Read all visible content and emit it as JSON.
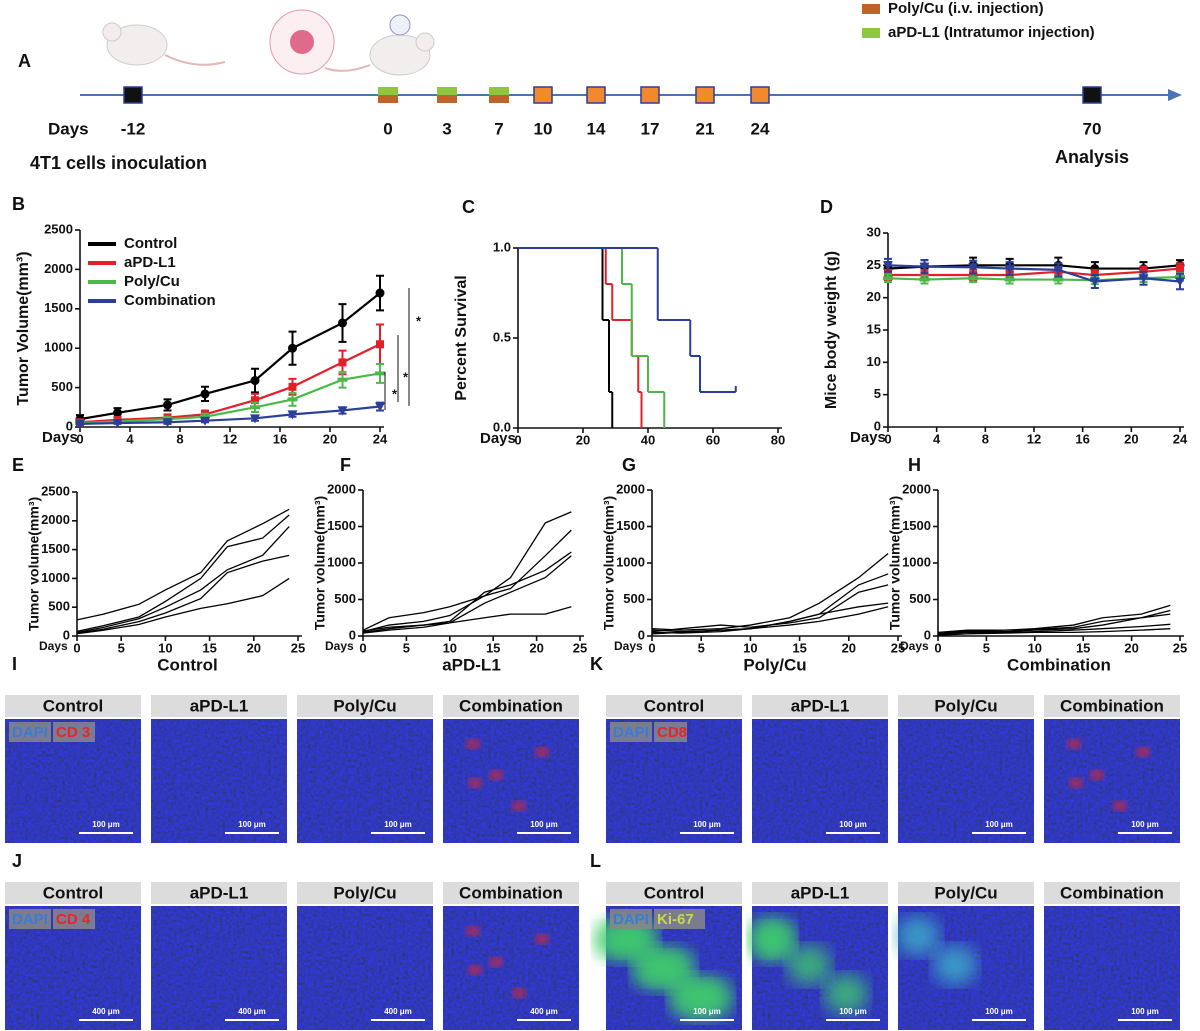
{
  "timeline": {
    "label": "A",
    "axis_label": "Days",
    "start_label": "4T1 cells inoculation",
    "end_label": "Analysis",
    "legend": [
      {
        "text": "Poly/Cu  (i.v. injection)",
        "color": "#c0622b"
      },
      {
        "text": "aPD-L1 (Intratumor injection)",
        "color": "#8dc63f"
      }
    ],
    "events": [
      {
        "day": "-12",
        "colors": [
          "#111111"
        ]
      },
      {
        "day": "0",
        "colors": [
          "#8dc63f",
          "#c0622b"
        ]
      },
      {
        "day": "3",
        "colors": [
          "#8dc63f",
          "#c0622b"
        ]
      },
      {
        "day": "7",
        "colors": [
          "#8dc63f",
          "#c0622b"
        ]
      },
      {
        "day": "10",
        "colors": [
          "#f08a2c"
        ]
      },
      {
        "day": "14",
        "colors": [
          "#f08a2c"
        ]
      },
      {
        "day": "17",
        "colors": [
          "#f08a2c"
        ]
      },
      {
        "day": "21",
        "colors": [
          "#f08a2c"
        ]
      },
      {
        "day": "24",
        "colors": [
          "#f08a2c"
        ]
      },
      {
        "day": "70",
        "colors": [
          "#111111"
        ]
      }
    ]
  },
  "chart_data": [
    {
      "label": "B",
      "type": "line",
      "ylabel": "Tumor Volume(mm³)",
      "xlabel": "Days",
      "x": [
        0,
        3,
        7,
        10,
        14,
        17,
        21,
        24
      ],
      "xlim": [
        0,
        24
      ],
      "xticks": [
        0,
        4,
        8,
        12,
        16,
        20,
        24
      ],
      "ylim": [
        0,
        2500
      ],
      "yticks": [
        0,
        500,
        1000,
        1500,
        2000,
        2500
      ],
      "legend": "upper left",
      "annotations": [
        "*",
        "*",
        "*"
      ],
      "series": [
        {
          "name": "Control",
          "color": "#000000",
          "marker": "circle",
          "values": [
            100,
            180,
            280,
            420,
            590,
            1000,
            1320,
            1700
          ],
          "errors": [
            50,
            60,
            70,
            90,
            150,
            210,
            240,
            220
          ]
        },
        {
          "name": "aPD-L1",
          "color": "#e3202a",
          "marker": "square",
          "values": [
            60,
            90,
            120,
            160,
            340,
            510,
            820,
            1050
          ],
          "errors": [
            20,
            30,
            40,
            50,
            80,
            100,
            150,
            250
          ]
        },
        {
          "name": "Poly/Cu",
          "color": "#4cb848",
          "marker": "bar",
          "values": [
            50,
            70,
            100,
            130,
            250,
            350,
            600,
            680
          ],
          "errors": [
            20,
            20,
            30,
            40,
            60,
            80,
            100,
            120
          ]
        },
        {
          "name": "Combination",
          "color": "#2a3f98",
          "marker": "triangle",
          "values": [
            40,
            50,
            60,
            80,
            110,
            160,
            210,
            260
          ],
          "errors": [
            10,
            10,
            20,
            20,
            30,
            30,
            40,
            50
          ]
        }
      ]
    },
    {
      "label": "C",
      "type": "step",
      "ylabel": "Percent Survival",
      "xlabel": "Days",
      "xlim": [
        0,
        80
      ],
      "xticks": [
        0,
        20,
        40,
        60,
        80
      ],
      "ylim": [
        0,
        1
      ],
      "yticks": [
        {
          "value": 0,
          "label": "0.0"
        },
        {
          "value": 0.5,
          "label": "0.5"
        },
        {
          "value": 1,
          "label": "1.0"
        }
      ],
      "series": [
        {
          "color": "#000000",
          "x": [
            0,
            26,
            28,
            29
          ],
          "values": [
            1,
            0.6,
            0.2,
            0
          ]
        },
        {
          "color": "#e3202a",
          "x": [
            0,
            27,
            29,
            35,
            37,
            38
          ],
          "values": [
            1,
            0.8,
            0.6,
            0.4,
            0.2,
            0
          ]
        },
        {
          "color": "#4cb848",
          "x": [
            0,
            32,
            35,
            37,
            40,
            45
          ],
          "values": [
            1,
            0.8,
            0.4,
            0.4,
            0.2,
            0
          ]
        },
        {
          "color": "#2a3f98",
          "x": [
            0,
            43,
            53,
            56,
            67
          ],
          "values": [
            1,
            0.6,
            0.4,
            0.2,
            0.2
          ]
        }
      ]
    },
    {
      "label": "D",
      "type": "line",
      "ylabel": "Mice body weight (g)",
      "xlabel": "Days",
      "x": [
        0,
        3,
        7,
        10,
        14,
        17,
        21,
        24
      ],
      "xlim": [
        0,
        24
      ],
      "xticks": [
        0,
        4,
        8,
        12,
        16,
        20,
        24
      ],
      "ylim": [
        0,
        30
      ],
      "yticks": [
        0,
        5,
        10,
        15,
        20,
        25,
        30
      ],
      "series": [
        {
          "color": "#000000",
          "marker": "circle",
          "values": [
            24.5,
            24.8,
            25,
            25,
            25,
            24.5,
            24.5,
            25
          ],
          "errors": [
            1,
            1,
            1.2,
            1,
            1.2,
            1,
            1,
            0.8
          ]
        },
        {
          "color": "#e3202a",
          "marker": "square",
          "values": [
            23.5,
            23.5,
            23.5,
            23.5,
            24,
            23.5,
            24,
            24.5
          ],
          "errors": [
            0.8,
            0.8,
            0.8,
            0.8,
            0.8,
            0.8,
            0.8,
            0.8
          ]
        },
        {
          "color": "#4cb848",
          "marker": "bar",
          "values": [
            23,
            22.8,
            23,
            22.8,
            22.8,
            22.7,
            23,
            23.2
          ],
          "errors": [
            0.6,
            0.6,
            0.6,
            0.6,
            0.6,
            0.6,
            0.6,
            0.6
          ]
        },
        {
          "color": "#2a3f98",
          "marker": "triangle",
          "values": [
            25,
            24.8,
            24.7,
            24.5,
            24.3,
            22.5,
            23,
            22.5
          ],
          "errors": [
            1,
            1,
            1,
            1,
            1,
            1,
            1,
            1.2
          ]
        }
      ]
    },
    {
      "label": "E",
      "type": "line",
      "title": "Control",
      "ylabel": "Tumor volume(mm³)",
      "xlabel": "Days",
      "x": [
        0,
        3,
        7,
        10,
        14,
        17,
        21,
        24
      ],
      "xlim": [
        0,
        25
      ],
      "xticks": [
        0,
        5,
        10,
        15,
        20,
        25
      ],
      "ylim": [
        0,
        2500
      ],
      "yticks": [
        0,
        500,
        1000,
        1500,
        2000,
        2500
      ],
      "series": [
        {
          "color": "#000000",
          "values": [
            280,
            380,
            550,
            800,
            1100,
            1650,
            1950,
            2200
          ]
        },
        {
          "color": "#000000",
          "values": [
            80,
            180,
            330,
            600,
            1000,
            1550,
            1700,
            2100
          ]
        },
        {
          "color": "#000000",
          "values": [
            60,
            150,
            300,
            500,
            800,
            1150,
            1400,
            1900
          ]
        },
        {
          "color": "#000000",
          "values": [
            50,
            120,
            250,
            400,
            650,
            1100,
            1300,
            1400
          ]
        },
        {
          "color": "#000000",
          "values": [
            40,
            100,
            200,
            330,
            480,
            560,
            700,
            1000
          ]
        }
      ]
    },
    {
      "label": "F",
      "type": "line",
      "title": "aPD-L1",
      "ylabel": "Tumor volume(mm³)",
      "xlabel": "Days",
      "x": [
        0,
        3,
        7,
        10,
        14,
        17,
        21,
        24
      ],
      "xlim": [
        0,
        25
      ],
      "xticks": [
        0,
        5,
        10,
        15,
        20,
        25
      ],
      "ylim": [
        0,
        2000
      ],
      "yticks": [
        0,
        500,
        1000,
        1500,
        2000
      ],
      "series": [
        {
          "color": "#000000",
          "values": [
            80,
            250,
            320,
            400,
            550,
            800,
            1550,
            1700
          ]
        },
        {
          "color": "#000000",
          "values": [
            60,
            150,
            200,
            280,
            550,
            650,
            1100,
            1450
          ]
        },
        {
          "color": "#000000",
          "values": [
            50,
            100,
            150,
            200,
            600,
            700,
            900,
            1150
          ]
        },
        {
          "color": "#000000",
          "values": [
            40,
            80,
            120,
            180,
            450,
            600,
            800,
            1100
          ]
        },
        {
          "color": "#000000",
          "values": [
            70,
            120,
            150,
            180,
            250,
            300,
            300,
            400
          ]
        }
      ]
    },
    {
      "label": "G",
      "type": "line",
      "title": "Poly/Cu",
      "ylabel": "Tumor volume(mm³)",
      "xlabel": "Days",
      "x": [
        0,
        3,
        7,
        10,
        14,
        17,
        21,
        24
      ],
      "xlim": [
        0,
        25
      ],
      "xticks": [
        0,
        5,
        10,
        15,
        20,
        25
      ],
      "ylim": [
        0,
        2000
      ],
      "yticks": [
        0,
        500,
        1000,
        1500,
        2000
      ],
      "series": [
        {
          "color": "#000000",
          "values": [
            100,
            80,
            100,
            150,
            250,
            450,
            800,
            1130
          ]
        },
        {
          "color": "#000000",
          "values": [
            80,
            60,
            80,
            100,
            200,
            300,
            700,
            850
          ]
        },
        {
          "color": "#000000",
          "values": [
            60,
            100,
            150,
            120,
            180,
            250,
            600,
            700
          ]
        },
        {
          "color": "#000000",
          "values": [
            50,
            40,
            60,
            100,
            200,
            300,
            400,
            450
          ]
        },
        {
          "color": "#000000",
          "values": [
            30,
            50,
            80,
            100,
            150,
            200,
            300,
            400
          ]
        }
      ]
    },
    {
      "label": "H",
      "type": "line",
      "title": "Combination",
      "ylabel": "Tumor volume(mm³)",
      "xlabel": "Days",
      "x": [
        0,
        3,
        7,
        10,
        14,
        17,
        21,
        24
      ],
      "xlim": [
        0,
        25
      ],
      "xticks": [
        0,
        5,
        10,
        15,
        20,
        25
      ],
      "ylim": [
        0,
        2000
      ],
      "yticks": [
        0,
        500,
        1000,
        1500,
        2000
      ],
      "series": [
        {
          "color": "#000000",
          "values": [
            50,
            80,
            80,
            100,
            150,
            250,
            300,
            420
          ]
        },
        {
          "color": "#000000",
          "values": [
            40,
            70,
            80,
            90,
            120,
            200,
            250,
            350
          ]
        },
        {
          "color": "#000000",
          "values": [
            30,
            60,
            60,
            80,
            100,
            150,
            250,
            300
          ]
        },
        {
          "color": "#000000",
          "values": [
            20,
            50,
            50,
            60,
            80,
            100,
            130,
            160
          ]
        },
        {
          "color": "#000000",
          "values": [
            10,
            30,
            40,
            50,
            50,
            60,
            80,
            100
          ]
        }
      ]
    }
  ],
  "image_panels": [
    {
      "label": "I",
      "columns": [
        "Control",
        "aPD-L1",
        "Poly/Cu",
        "Combination"
      ],
      "stains": [
        {
          "text": "DAPI",
          "color": "#3a7bd5"
        },
        {
          "text": "CD 3",
          "color": "#e8262a"
        }
      ],
      "scale_bar": "100 μm"
    },
    {
      "label": "K",
      "columns": [
        "Control",
        "aPD-L1",
        "Poly/Cu",
        "Combination"
      ],
      "stains": [
        {
          "text": "DAPI",
          "color": "#3a7bd5"
        },
        {
          "text": "CD8",
          "color": "#e8262a"
        }
      ],
      "scale_bar": "100 μm"
    },
    {
      "label": "J",
      "columns": [
        "Control",
        "aPD-L1",
        "Poly/Cu",
        "Combination"
      ],
      "stains": [
        {
          "text": "DAPI",
          "color": "#3a7bd5"
        },
        {
          "text": "CD 4",
          "color": "#e8262a"
        }
      ],
      "scale_bar": "400 μm"
    },
    {
      "label": "L",
      "columns": [
        "Control",
        "aPD-L1",
        "Poly/Cu",
        "Combination"
      ],
      "stains": [
        {
          "text": "DAPI",
          "color": "#3a7bd5"
        },
        {
          "text": "Ki-67",
          "color": "#c8d94a"
        }
      ],
      "scale_bar": "100 μm"
    }
  ]
}
